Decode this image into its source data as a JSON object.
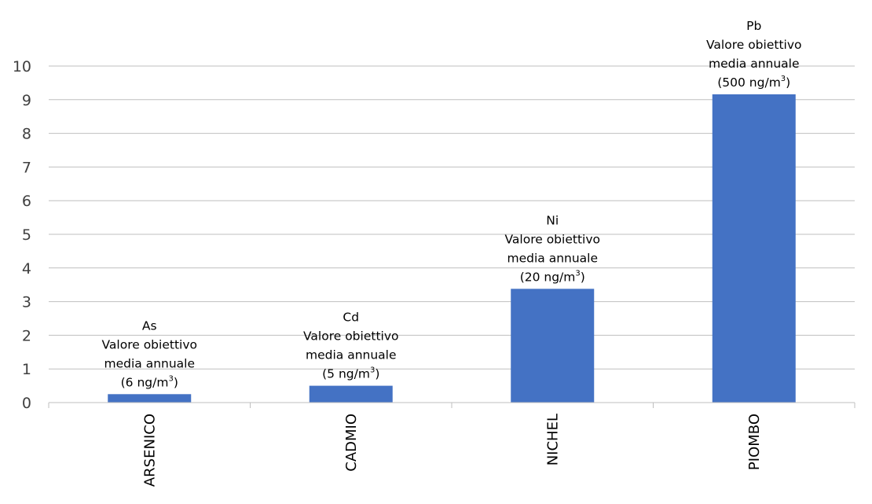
{
  "chart_data": {
    "type": "bar",
    "categories": [
      "ARSENICO",
      "CADMIO",
      "NICHEL",
      "PIOMBO"
    ],
    "values": [
      0.25,
      0.5,
      3.38,
      9.16
    ],
    "ylim": [
      0,
      10
    ],
    "yticks": [
      "0",
      "1",
      "2",
      "3",
      "4",
      "5",
      "6",
      "7",
      "8",
      "9",
      "10"
    ],
    "grid": true,
    "bar_color": "#4472C4",
    "annotations": [
      {
        "symbol": "As",
        "line2": "Valore obiettivo",
        "line3": "media annuale",
        "limit_open": "(6 ng/m",
        "limit_sup": "3",
        "limit_close": ")"
      },
      {
        "symbol": "Cd",
        "line2": "Valore obiettivo",
        "line3": "media annuale",
        "limit_open": "(5 ng/m",
        "limit_sup": "3",
        "limit_close": ")"
      },
      {
        "symbol": "Ni",
        "line2": "Valore obiettivo",
        "line3": "media annuale",
        "limit_open": "(20 ng/m",
        "limit_sup": "3",
        "limit_close": ")"
      },
      {
        "symbol": "Pb",
        "line2": "Valore obiettivo",
        "line3": "media annuale",
        "limit_open": "(500 ng/m",
        "limit_sup": "3",
        "limit_close": ")"
      }
    ]
  }
}
